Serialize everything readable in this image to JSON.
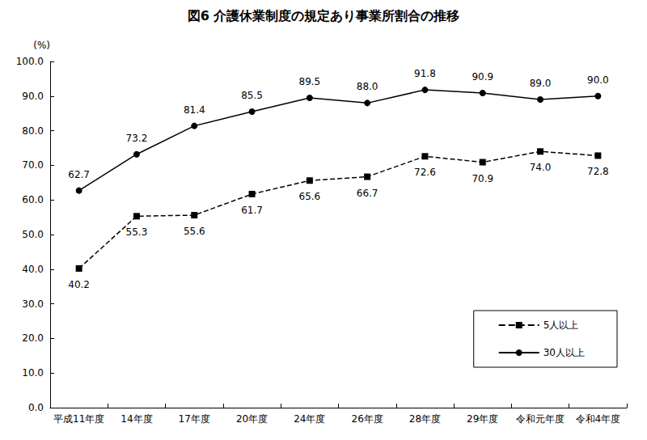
{
  "chart_data": {
    "type": "line",
    "title": "図6 介護休業制度の規定あり事業所割合の推移",
    "y_label": "(%)",
    "categories": [
      "平成11年度",
      "14年度",
      "17年度",
      "20年度",
      "24年度",
      "26年度",
      "28年度",
      "29年度",
      "令和元年度",
      "令和4年度"
    ],
    "series": [
      {
        "name": "5人以上",
        "color": "#000000",
        "marker": "square",
        "line_style": "dashed",
        "values": [
          40.2,
          55.3,
          55.6,
          61.7,
          65.6,
          66.7,
          72.6,
          70.9,
          74.0,
          72.8
        ],
        "value_labels": [
          "40.2",
          "55.3",
          "55.6",
          "61.7",
          "65.6",
          "66.7",
          "72.6",
          "70.9",
          "74.0",
          "72.8"
        ]
      },
      {
        "name": "30人以上",
        "color": "#000000",
        "marker": "circle",
        "line_style": "solid",
        "values": [
          62.7,
          73.2,
          81.4,
          85.5,
          89.5,
          88.0,
          91.8,
          90.9,
          89.0,
          90.0
        ],
        "value_labels": [
          "62.7",
          "73.2",
          "81.4",
          "85.5",
          "89.5",
          "88.0",
          "91.8",
          "90.9",
          "89.0",
          "90.0"
        ]
      }
    ],
    "ylim": [
      0,
      100
    ],
    "yticks": [
      {
        "value": 0,
        "label": "0.0"
      },
      {
        "value": 10,
        "label": "10.0"
      },
      {
        "value": 20,
        "label": "20.0"
      },
      {
        "value": 30,
        "label": "30.0"
      },
      {
        "value": 40,
        "label": "40.0"
      },
      {
        "value": 50,
        "label": "50.0"
      },
      {
        "value": 60,
        "label": "60.0"
      },
      {
        "value": 70,
        "label": "70.0"
      },
      {
        "value": 80,
        "label": "80.0"
      },
      {
        "value": 90,
        "label": "90.0"
      },
      {
        "value": 100,
        "label": "100.0"
      }
    ],
    "grid": false,
    "legend": "bottom-right",
    "data_labels": true
  }
}
